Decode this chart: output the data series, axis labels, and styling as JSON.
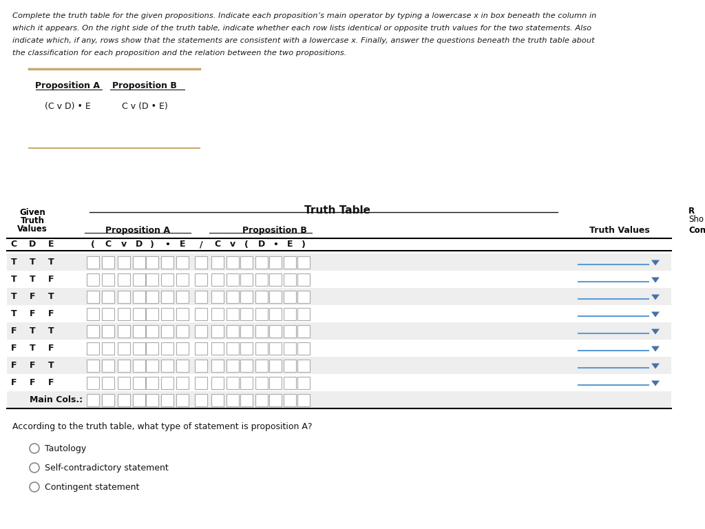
{
  "bg_color": "#ffffff",
  "intro_line1": "Complete the truth table for the given propositions. Indicate each proposition’s main operator by typing a lowercase x in box beneath the column in",
  "intro_line2": "which it appears. On the right side of the truth table, indicate whether each row lists identical or opposite truth values for the two statements. Also",
  "intro_line3": "indicate which, if any, rows show that the statements are consistent with a lowercase x. Finally, answer the questions beneath the truth table about",
  "intro_line4": "the classification for each proposition and the relation between the two propositions.",
  "prop_a_label": "Proposition A",
  "prop_b_label": "Proposition B",
  "prop_a_formula": "(C v D) • E",
  "prop_b_formula": "C v (D • E)",
  "table_title": "Truth Table",
  "given_cols": [
    "C",
    "D",
    "E"
  ],
  "prop_a_hdrs": [
    "(",
    "C",
    "v",
    "D",
    ")",
    "•",
    "E"
  ],
  "slash_col": "/",
  "prop_b_hdrs": [
    "C",
    "v",
    "(",
    "D",
    "•",
    "E",
    ")"
  ],
  "truth_values_label": "Truth Values",
  "main_cols_label": "Main Cols.:",
  "rows": [
    [
      "T",
      "T",
      "T"
    ],
    [
      "T",
      "T",
      "F"
    ],
    [
      "T",
      "F",
      "T"
    ],
    [
      "T",
      "F",
      "F"
    ],
    [
      "F",
      "T",
      "T"
    ],
    [
      "F",
      "T",
      "F"
    ],
    [
      "F",
      "F",
      "T"
    ],
    [
      "F",
      "F",
      "F"
    ]
  ],
  "question_text": "According to the truth table, what type of statement is proposition A?",
  "options": [
    "Tautology",
    "Self-contradictory statement",
    "Contingent statement"
  ],
  "alt_bg": "#eeeeee",
  "box_border": "#aaaaaa",
  "dropdown_line_color": "#5b9bd5",
  "dropdown_arrow_color": "#4472a8",
  "prop_line_color": "#c8a96e",
  "radio_color": "#888888"
}
